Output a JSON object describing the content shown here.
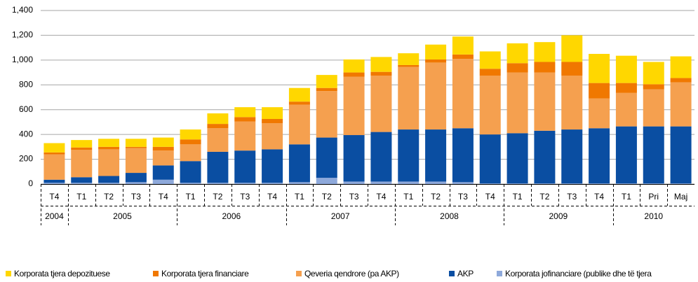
{
  "chart_data": {
    "type": "stacked_bar",
    "categories": [
      "T4",
      "T1",
      "T2",
      "T3",
      "T4",
      "T1",
      "T2",
      "T3",
      "T4",
      "T1",
      "T2",
      "T3",
      "T4",
      "T1",
      "T2",
      "T3",
      "T4",
      "T1",
      "T2",
      "T3",
      "T4",
      "T1",
      "Pri",
      "Maj"
    ],
    "groups": [
      {
        "label": "2004",
        "size": 1
      },
      {
        "label": "2005",
        "size": 4
      },
      {
        "label": "2006",
        "size": 4
      },
      {
        "label": "2007",
        "size": 4
      },
      {
        "label": "2008",
        "size": 4
      },
      {
        "label": "2009",
        "size": 4
      },
      {
        "label": "2010",
        "size": 3
      }
    ],
    "series": [
      {
        "name": "Korporata tjera depozituese",
        "color": "#ffd700",
        "values": [
          75,
          60,
          65,
          65,
          75,
          80,
          85,
          80,
          95,
          110,
          105,
          105,
          120,
          95,
          120,
          145,
          140,
          160,
          160,
          215,
          235,
          220,
          180,
          175
        ]
      },
      {
        "name": "Korporata tjera financiare",
        "color": "#f07800",
        "values": [
          15,
          20,
          20,
          10,
          30,
          40,
          35,
          35,
          35,
          25,
          25,
          35,
          30,
          15,
          25,
          35,
          55,
          75,
          85,
          110,
          125,
          80,
          40,
          35
        ]
      },
      {
        "name": "Qeveria qendrore (pa AKP)",
        "color": "#f5a04f",
        "values": [
          205,
          220,
          215,
          200,
          120,
          135,
          190,
          235,
          210,
          320,
          375,
          470,
          455,
          505,
          540,
          560,
          475,
          490,
          470,
          435,
          240,
          270,
          300,
          355
        ]
      },
      {
        "name": "AKP",
        "color": "#0a4ea2",
        "values": [
          25,
          45,
          55,
          75,
          115,
          175,
          250,
          260,
          270,
          305,
          325,
          375,
          400,
          420,
          420,
          435,
          395,
          405,
          425,
          435,
          445,
          460,
          460,
          460
        ]
      },
      {
        "name": "Korporata jofinanciare (publike dhe të tjera",
        "color": "#8ea9db",
        "values": [
          10,
          10,
          10,
          15,
          35,
          10,
          10,
          10,
          10,
          15,
          50,
          20,
          20,
          20,
          20,
          15,
          5,
          5,
          5,
          5,
          5,
          5,
          5,
          5
        ]
      }
    ],
    "ylim": [
      0,
      1400
    ],
    "yticks": [
      0,
      200,
      400,
      600,
      800,
      {
        "value": 1000,
        "label": "1,000"
      },
      {
        "value": 1200,
        "label": "1,200"
      },
      {
        "value": 1400,
        "label": "1,400"
      }
    ],
    "grid": true,
    "legend": "bottom"
  }
}
